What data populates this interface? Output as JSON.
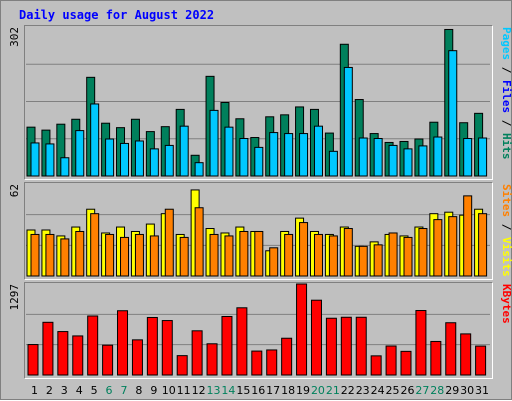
{
  "title": "Daily usage for August 2022",
  "colors": {
    "hits": "#00805c",
    "files": "#00c8ff",
    "pages": "#00c8ff",
    "visits": "#ffff00",
    "sites": "#ff8000",
    "kbytes": "#ff0000",
    "weekday": "#000000",
    "weekend": "#00805c",
    "title": "#0000ff"
  },
  "chart_data": [
    {
      "type": "bar",
      "panel": "hits-files-pages",
      "ylim": [
        0,
        302
      ],
      "ymax_label": "302",
      "legend": [
        {
          "name": "Pages",
          "color": "#00c8ff"
        },
        {
          "name": "Files",
          "color": "#0000ff"
        },
        {
          "name": "Hits",
          "color": "#00805c"
        }
      ],
      "categories": [
        "1",
        "2",
        "3",
        "4",
        "5",
        "6",
        "7",
        "8",
        "9",
        "10",
        "11",
        "12",
        "13",
        "14",
        "15",
        "16",
        "17",
        "18",
        "19",
        "20",
        "21",
        "22",
        "23",
        "24",
        "25",
        "26",
        "27",
        "28",
        "29",
        "30",
        "31"
      ],
      "series": [
        {
          "name": "Hits",
          "values": [
            99,
            93,
            105,
            115,
            200,
            107,
            98,
            115,
            90,
            100,
            135,
            42,
            202,
            149,
            116,
            78,
            120,
            124,
            140,
            135,
            87,
            267,
            155,
            86,
            68,
            70,
            75,
            109,
            297,
            108,
            127
          ]
        },
        {
          "name": "Files",
          "values": [
            67,
            65,
            37,
            92,
            146,
            75,
            66,
            71,
            55,
            62,
            101,
            27,
            133,
            99,
            76,
            58,
            88,
            86,
            86,
            101,
            50,
            220,
            77,
            76,
            62,
            55,
            61,
            79,
            254,
            76,
            77
          ]
        }
      ]
    },
    {
      "type": "bar",
      "panel": "visits-sites",
      "ylim": [
        0,
        62
      ],
      "ymax_label": "62",
      "legend": [
        {
          "name": "Sites",
          "color": "#ff8000"
        },
        {
          "name": "Visits",
          "color": "#ffff00"
        }
      ],
      "categories": [
        "1",
        "2",
        "3",
        "4",
        "5",
        "6",
        "7",
        "8",
        "9",
        "10",
        "11",
        "12",
        "13",
        "14",
        "15",
        "16",
        "17",
        "18",
        "19",
        "20",
        "21",
        "22",
        "23",
        "24",
        "25",
        "26",
        "27",
        "28",
        "29",
        "30",
        "31"
      ],
      "series": [
        {
          "name": "Visits",
          "values": [
            31,
            31,
            27,
            33,
            45,
            29,
            33,
            30,
            35,
            42,
            28,
            58,
            32,
            29,
            33,
            30,
            17,
            30,
            39,
            30,
            28,
            33,
            20,
            23,
            28,
            27,
            33,
            42,
            43,
            41,
            45
          ]
        },
        {
          "name": "Sites",
          "values": [
            28,
            28,
            25,
            30,
            42,
            28,
            26,
            28,
            27,
            45,
            26,
            46,
            28,
            27,
            30,
            30,
            19,
            28,
            36,
            28,
            27,
            32,
            20,
            21,
            29,
            26,
            32,
            38,
            40,
            54,
            42
          ]
        }
      ]
    },
    {
      "type": "bar",
      "panel": "kbytes",
      "ylim": [
        0,
        1297
      ],
      "ymax_label": "1297",
      "legend": [
        {
          "name": "KBytes",
          "color": "#ff0000"
        }
      ],
      "categories": [
        "1",
        "2",
        "3",
        "4",
        "5",
        "6",
        "7",
        "8",
        "9",
        "10",
        "11",
        "12",
        "13",
        "14",
        "15",
        "16",
        "17",
        "18",
        "19",
        "20",
        "21",
        "22",
        "23",
        "24",
        "25",
        "26",
        "27",
        "28",
        "29",
        "30",
        "31"
      ],
      "series": [
        {
          "name": "KBytes",
          "values": [
            434,
            751,
            619,
            557,
            841,
            425,
            916,
            501,
            820,
            776,
            276,
            630,
            445,
            834,
            958,
            341,
            357,
            524,
            1297,
            1066,
            809,
            823,
            823,
            273,
            413,
            337,
            919,
            478,
            745,
            586,
            412
          ]
        }
      ],
      "weekend_days": [
        "6",
        "7",
        "13",
        "14",
        "20",
        "21",
        "27",
        "28"
      ]
    }
  ]
}
